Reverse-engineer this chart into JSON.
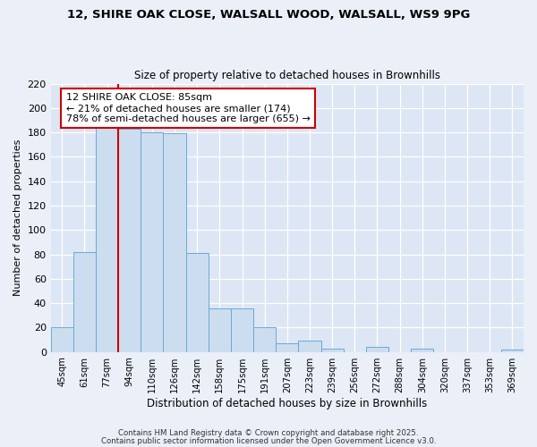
{
  "title1": "12, SHIRE OAK CLOSE, WALSALL WOOD, WALSALL, WS9 9PG",
  "title2": "Size of property relative to detached houses in Brownhills",
  "xlabel": "Distribution of detached houses by size in Brownhills",
  "ylabel": "Number of detached properties",
  "bar_labels": [
    "45sqm",
    "61sqm",
    "77sqm",
    "94sqm",
    "110sqm",
    "126sqm",
    "142sqm",
    "158sqm",
    "175sqm",
    "191sqm",
    "207sqm",
    "223sqm",
    "239sqm",
    "256sqm",
    "272sqm",
    "288sqm",
    "304sqm",
    "320sqm",
    "337sqm",
    "353sqm",
    "369sqm"
  ],
  "bar_values": [
    20,
    82,
    184,
    183,
    180,
    179,
    81,
    36,
    36,
    20,
    7,
    9,
    3,
    0,
    4,
    0,
    3,
    0,
    0,
    0,
    2
  ],
  "bar_color": "#cdddf0",
  "bar_edge_color": "#6aaad4",
  "vline_color": "#cc0000",
  "annotation_text": "12 SHIRE OAK CLOSE: 85sqm\n← 21% of detached houses are smaller (174)\n78% of semi-detached houses are larger (655) →",
  "annotation_box_color": "#ffffff",
  "annotation_box_edge": "#cc0000",
  "ylim": [
    0,
    220
  ],
  "yticks": [
    0,
    20,
    40,
    60,
    80,
    100,
    120,
    140,
    160,
    180,
    200,
    220
  ],
  "footer1": "Contains HM Land Registry data © Crown copyright and database right 2025.",
  "footer2": "Contains public sector information licensed under the Open Government Licence v3.0.",
  "bg_color": "#eaeff8",
  "plot_bg_color": "#dce6f4",
  "grid_color": "#ffffff"
}
